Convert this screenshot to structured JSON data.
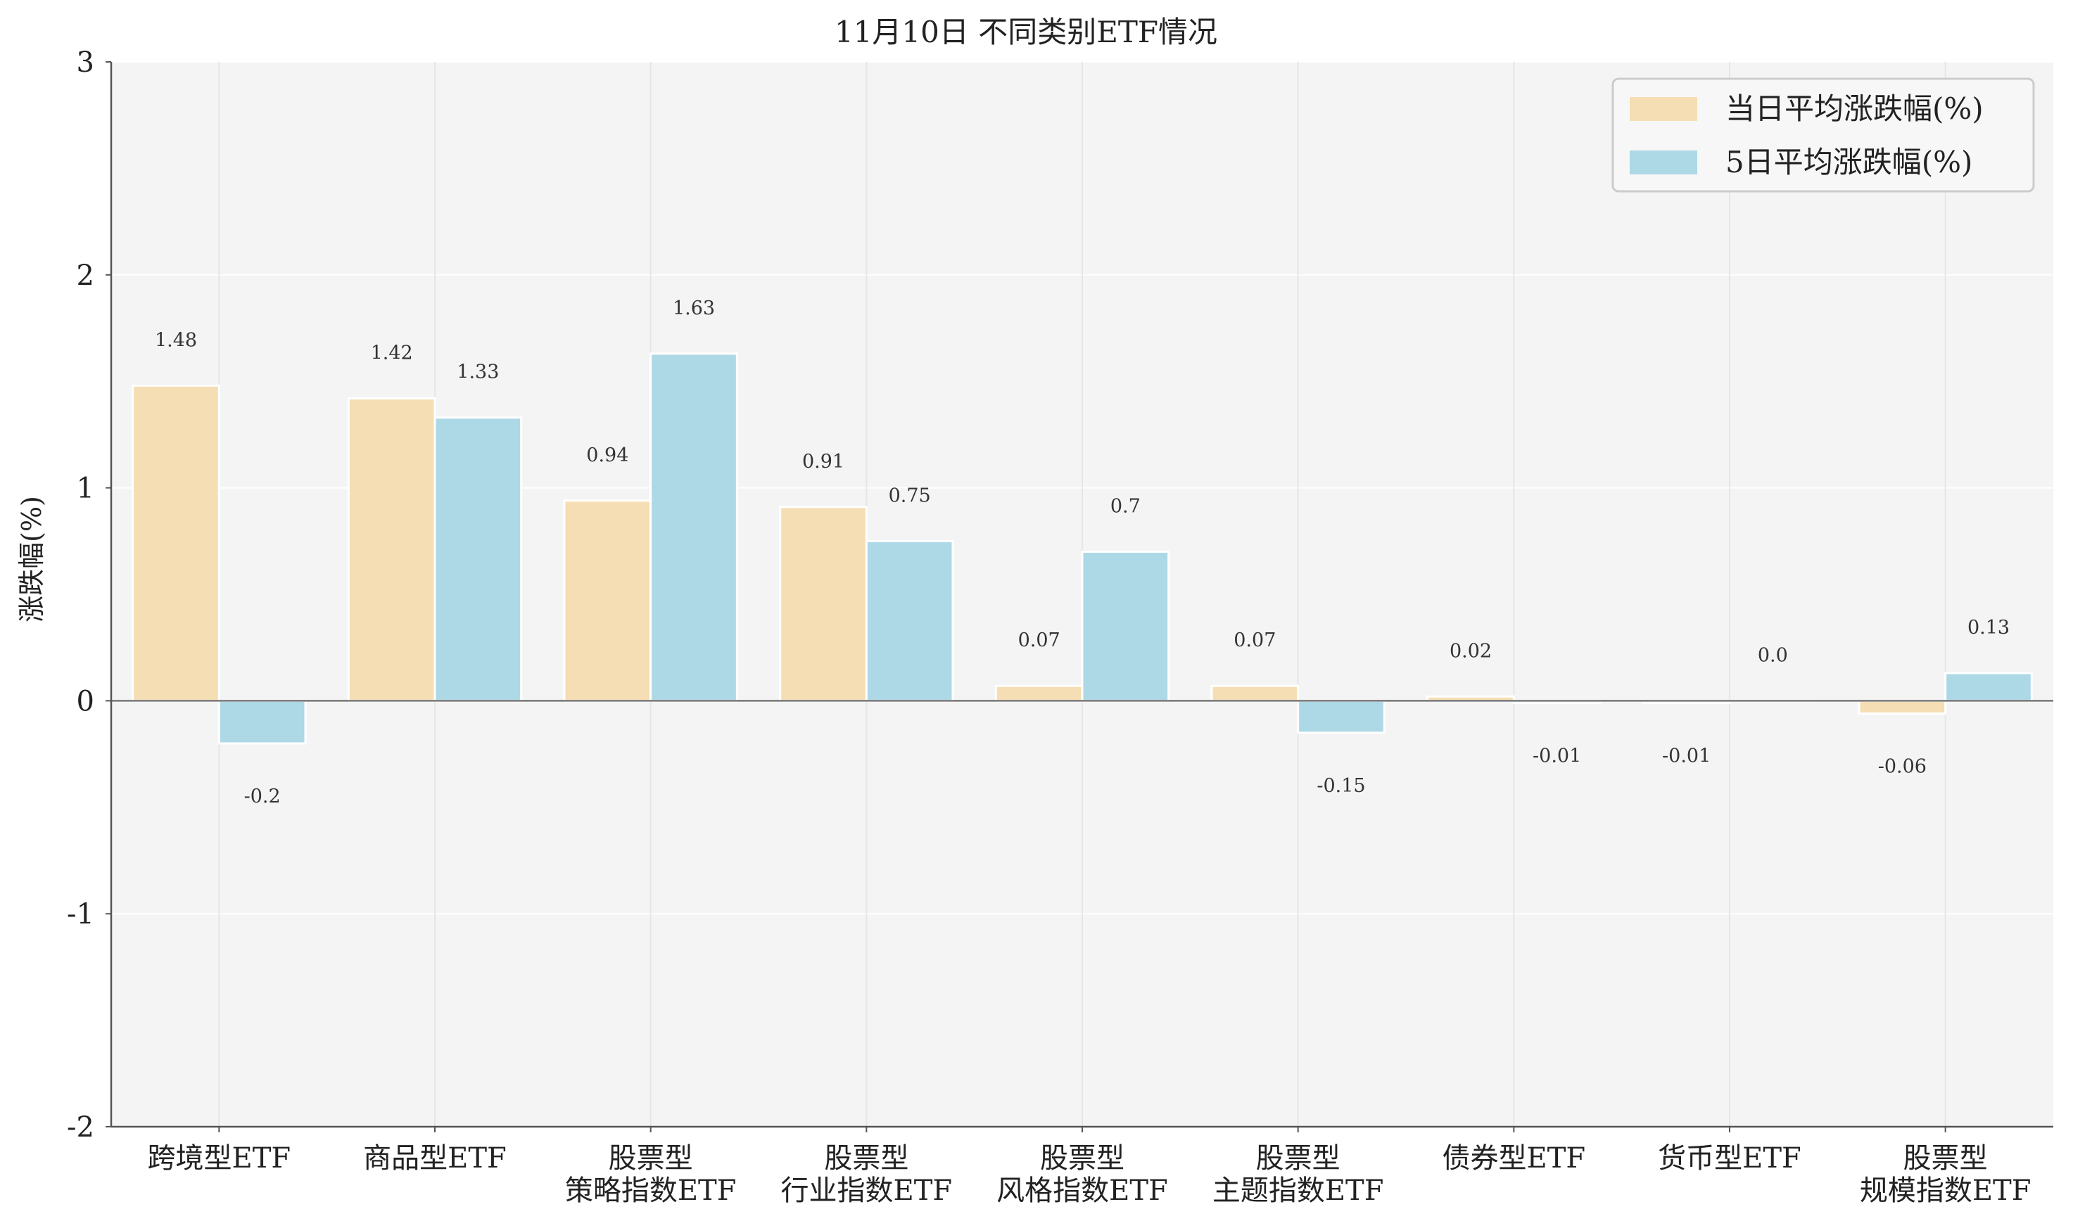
{
  "chart_data": {
    "type": "bar",
    "title": "11月10日 不同类别ETF情况",
    "xlabel": "",
    "ylabel": "涨跌幅(%)",
    "ylim": [
      -2,
      3
    ],
    "yticks": [
      3,
      2,
      1,
      0,
      -1,
      -2
    ],
    "grid": true,
    "legend_position": "top-right",
    "categories": [
      [
        "跨境型ETF"
      ],
      [
        "商品型ETF"
      ],
      [
        "股票型",
        "策略指数ETF"
      ],
      [
        "股票型",
        "行业指数ETF"
      ],
      [
        "股票型",
        "风格指数ETF"
      ],
      [
        "股票型",
        "主题指数ETF"
      ],
      [
        "债券型ETF"
      ],
      [
        "货币型ETF"
      ],
      [
        "股票型",
        "规模指数ETF"
      ]
    ],
    "series": [
      {
        "name": "当日平均涨跌幅(%)",
        "color": "#f5deb3",
        "values": [
          1.48,
          1.42,
          0.94,
          0.91,
          0.07,
          0.07,
          0.02,
          -0.01,
          -0.06
        ],
        "labels": [
          "1.48",
          "1.42",
          "0.94",
          "0.91",
          "0.07",
          "0.07",
          "0.02",
          "-0.01",
          "-0.06"
        ]
      },
      {
        "name": "5日平均涨跌幅(%)",
        "color": "#add8e6",
        "values": [
          -0.2,
          1.33,
          1.63,
          0.75,
          0.7,
          -0.15,
          -0.01,
          0.0,
          0.13
        ],
        "labels": [
          "-0.2",
          "1.33",
          "1.63",
          "0.75",
          "0.7",
          "-0.15",
          "-0.01",
          "0.0",
          "0.13"
        ]
      }
    ]
  },
  "colors": {
    "plot_background": "#f4f4f4",
    "grid": "#e6e6e6",
    "axis": "#555555",
    "zero_line": "#777777"
  }
}
